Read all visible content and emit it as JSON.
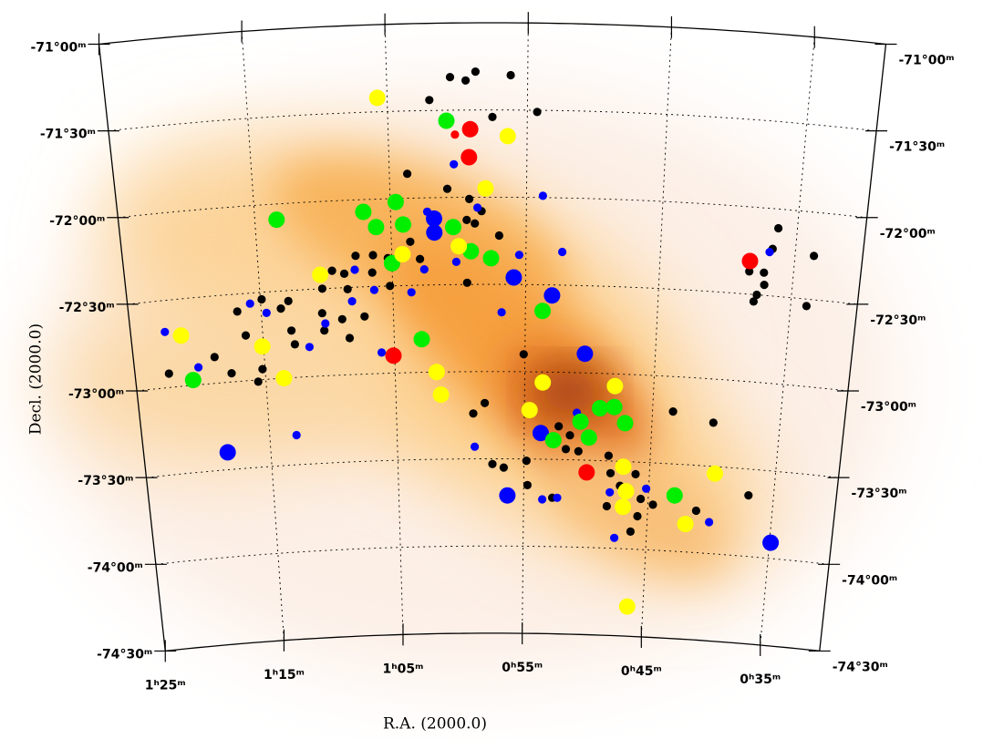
{
  "chart_data": {
    "type": "scatter",
    "xlabel": "R.A.  (2000.0)",
    "ylabel": "Decl.  (2000.0)",
    "xlim": [
      85,
      30
    ],
    "ylim": [
      -71,
      -74.5
    ],
    "xticks": [
      {
        "value": 85,
        "label": "1ʰ25ᵐ"
      },
      {
        "value": 75,
        "label": "1ʰ15ᵐ"
      },
      {
        "value": 65,
        "label": "1ʰ05ᵐ"
      },
      {
        "value": 55,
        "label": "0ʰ55ᵐ"
      },
      {
        "value": 45,
        "label": "0ʰ45ᵐ"
      },
      {
        "value": 35,
        "label": "0ʰ35ᵐ"
      }
    ],
    "yticks": [
      {
        "value": -71,
        "label": "-71°00ᵐ"
      },
      {
        "value": -71.5,
        "label": "-71°30ᵐ"
      },
      {
        "value": -72,
        "label": "-72°00ᵐ"
      },
      {
        "value": -72.5,
        "label": "-72°30ᵐ"
      },
      {
        "value": -73,
        "label": "-73°00ᵐ"
      },
      {
        "value": -73.5,
        "label": "-73°30ᵐ"
      },
      {
        "value": -74,
        "label": "-74°00ᵐ"
      },
      {
        "value": -74.5,
        "label": "-74°30ᵐ"
      }
    ],
    "grid": true,
    "series": [
      {
        "color": "#000000",
        "marker": "small",
        "x": [
          60.5,
          59.4,
          58.7,
          56.2,
          62.0,
          57.5,
          54.3,
          63.7,
          60.8,
          59.2,
          59.4,
          58.3,
          58.8,
          57.0,
          63.6,
          66.4,
          65.3,
          62.9,
          67.7,
          69.5,
          68.6,
          66.5,
          59.4,
          70.3,
          68.4,
          65.2,
          72.9,
          76.8,
          74.9,
          73.5,
          67.2,
          68.9,
          70.4,
          70.3,
          68.4,
          72.8,
          72.6,
          76.3,
          75.2,
          75.6,
          77.6,
          82.4,
          78.8,
          55.1,
          58.1,
          59.0,
          57.5,
          54.8,
          56.6,
          54.7,
          52.7,
          50.7,
          51.7,
          48.3,
          48.1,
          46.1,
          44.6,
          47.3,
          45.6,
          48.3,
          45.8,
          41.1,
          46.3,
          43.4,
          40.2,
          37.0,
          36.4,
          36.7,
          38.3,
          37.2,
          37.1,
          37.6,
          37.8,
          33.8,
          33.6,
          51.4,
          52.3
        ],
        "values": [
          -71.31,
          -71.33,
          -71.28,
          -71.3,
          -71.44,
          -71.54,
          -71.51,
          -71.86,
          -71.95,
          -72.01,
          -72.13,
          -72.08,
          -72.15,
          -72.22,
          -72.25,
          -72.32,
          -72.34,
          -72.35,
          -72.32,
          -72.4,
          -72.42,
          -72.42,
          -72.49,
          -72.5,
          -72.51,
          -72.5,
          -72.56,
          -72.6,
          -72.54,
          -72.6,
          -72.67,
          -72.68,
          -72.64,
          -72.74,
          -72.79,
          -72.73,
          -72.81,
          -72.74,
          -72.94,
          -73.01,
          -72.95,
          -72.92,
          -72.85,
          -72.9,
          -73.18,
          -73.24,
          -73.53,
          -73.51,
          -73.55,
          -73.65,
          -73.72,
          -73.45,
          -73.44,
          -73.47,
          -73.57,
          -73.57,
          -73.74,
          -73.64,
          -73.71,
          -73.76,
          -73.81,
          -73.76,
          -73.9,
          -73.2,
          -73.25,
          -73.65,
          -72.11,
          -72.23,
          -72.37,
          -72.37,
          -72.44,
          -72.5,
          -72.54,
          -72.54,
          -72.25,
          -73.36,
          -73.31
        ]
      },
      {
        "color": "#0000ff",
        "marker": "small",
        "x": [
          60.3,
          53.8,
          58.6,
          62.3,
          55.5,
          52.3,
          60.2,
          62.6,
          67.8,
          66.4,
          63.6,
          68.1,
          75.8,
          74.6,
          70.2,
          56.8,
          71.5,
          66.0,
          82.4,
          80.1,
          72.9,
          58.9,
          50.9,
          53.5,
          52.3,
          48.1,
          45.2,
          40.0,
          47.6,
          36.9
        ],
        "values": [
          -71.81,
          -71.99,
          -72.06,
          -72.08,
          -72.33,
          -72.31,
          -72.37,
          -72.41,
          -72.4,
          -72.52,
          -72.54,
          -72.58,
          -72.56,
          -72.62,
          -72.7,
          -72.66,
          -72.83,
          -72.88,
          -72.68,
          -72.9,
          -73.33,
          -73.43,
          -73.23,
          -73.73,
          -73.72,
          -73.68,
          -73.65,
          -73.82,
          -73.94,
          -72.25
        ]
      },
      {
        "color": "#0000ff",
        "marker": "large",
        "x": [
          61.8,
          61.8,
          55.9,
          53.0,
          50.4,
          53.7,
          78.4,
          56.3,
          34.9
        ],
        "values": [
          -72.12,
          -72.2,
          -72.46,
          -72.56,
          -72.89,
          -73.35,
          -73.4,
          -73.71,
          -73.91
        ]
      },
      {
        "color": "#00ee00",
        "marker": "large",
        "x": [
          60.8,
          73.4,
          64.6,
          67.0,
          66.1,
          64.1,
          60.4,
          65.0,
          59.1,
          57.6,
          62.9,
          53.7,
          80.6,
          49.1,
          48.0,
          50.6,
          47.1,
          49.9,
          52.7,
          42.9
        ],
        "values": [
          -71.56,
          -72.09,
          -72.02,
          -72.07,
          -72.16,
          -72.15,
          -72.17,
          -72.37,
          -72.31,
          -72.35,
          -72.81,
          -72.65,
          -72.97,
          -73.2,
          -73.19,
          -73.28,
          -73.28,
          -73.37,
          -73.39,
          -73.68
        ]
      },
      {
        "color": "#ffff00",
        "marker": "large",
        "x": [
          65.7,
          56.4,
          58.0,
          64.2,
          60.0,
          70.4,
          81.2,
          75.1,
          73.6,
          61.8,
          61.5,
          53.6,
          48.0,
          54.6,
          47.1,
          39.8,
          46.8,
          47.0,
          41.9,
          46.3
        ],
        "values": [
          -71.42,
          -71.65,
          -71.95,
          -72.32,
          -72.28,
          -72.42,
          -72.71,
          -72.81,
          -73.0,
          -73.0,
          -73.13,
          -73.06,
          -73.07,
          -73.22,
          -73.53,
          -73.54,
          -73.67,
          -73.76,
          -73.84,
          -74.33
        ]
      },
      {
        "color": "#ff0000",
        "marker": "large",
        "x": [
          59.1,
          59.2,
          38.3,
          65.1,
          50.0
        ],
        "values": [
          -71.61,
          -71.77,
          -72.31,
          -72.9,
          -73.57
        ]
      },
      {
        "color": "#ff0000",
        "marker": "small",
        "x": [
          60.2
        ],
        "values": [
          -71.64
        ]
      }
    ]
  }
}
